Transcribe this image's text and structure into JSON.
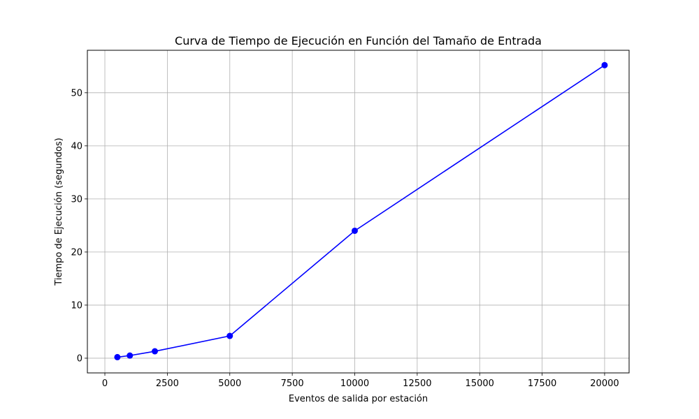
{
  "chart_data": {
    "type": "line",
    "title": "Curva de Tiempo de Ejecución en Función del Tamaño de Entrada",
    "xlabel": "Eventos de salida por estación",
    "ylabel": "Tiempo de Ejecución (segundos)",
    "xlim": [
      -700,
      20980
    ],
    "ylim": [
      -2.77,
      58.0
    ],
    "x_ticks": [
      0,
      2500,
      5000,
      7500,
      10000,
      12500,
      15000,
      17500,
      20000
    ],
    "y_ticks": [
      0,
      10,
      20,
      30,
      40,
      50
    ],
    "grid": true,
    "series": [
      {
        "color": "#0000ff",
        "marker": "circle",
        "x": [
          500,
          1000,
          2000,
          5000,
          10000,
          20000
        ],
        "y": [
          0.2,
          0.5,
          1.3,
          4.2,
          24.0,
          55.2
        ]
      }
    ]
  }
}
